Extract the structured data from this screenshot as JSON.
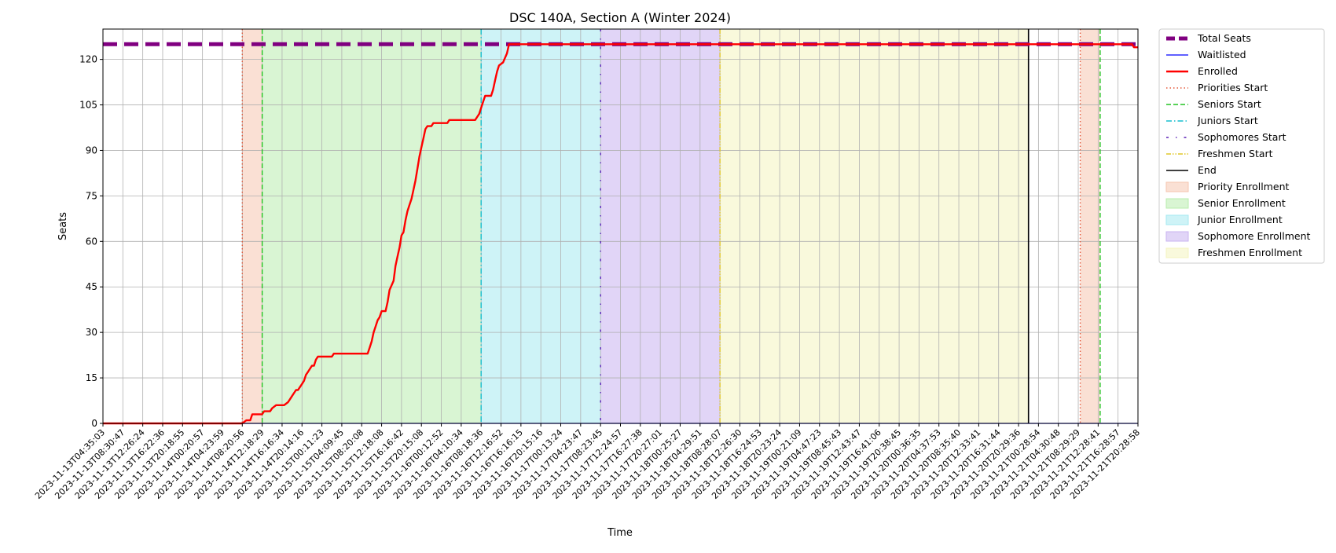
{
  "chart_data": {
    "type": "line",
    "title": "DSC 140A, Section A (Winter 2024)",
    "xlabel": "Time",
    "ylabel": "Seats",
    "ylim": [
      0,
      130
    ],
    "yticks": [
      0,
      15,
      30,
      45,
      60,
      75,
      90,
      105,
      120
    ],
    "grid": true,
    "legend_placement": "outside-right",
    "x_tick_labels": [
      "2023-11-13T04:35:03",
      "2023-11-13T08:30:47",
      "2023-11-13T12:26:24",
      "2023-11-13T16:22:36",
      "2023-11-13T20:18:55",
      "2023-11-14T00:20:57",
      "2023-11-14T04:23:59",
      "2023-11-14T08:20:56",
      "2023-11-14T12:18:29",
      "2023-11-14T16:16:34",
      "2023-11-14T20:14:16",
      "2023-11-15T00:11:23",
      "2023-11-15T04:09:45",
      "2023-11-15T08:20:08",
      "2023-11-15T12:18:08",
      "2023-11-15T16:16:42",
      "2023-11-15T20:15:08",
      "2023-11-16T00:12:52",
      "2023-11-16T04:10:34",
      "2023-11-16T08:18:36",
      "2023-11-16T12:16:52",
      "2023-11-16T16:16:15",
      "2023-11-16T20:15:16",
      "2023-11-17T00:13:24",
      "2023-11-17T04:23:47",
      "2023-11-17T08:23:45",
      "2023-11-17T12:24:57",
      "2023-11-17T16:27:38",
      "2023-11-17T20:27:01",
      "2023-11-18T00:25:27",
      "2023-11-18T04:29:51",
      "2023-11-18T08:28:07",
      "2023-11-18T12:26:30",
      "2023-11-18T16:24:53",
      "2023-11-18T20:23:24",
      "2023-11-19T00:21:09",
      "2023-11-19T04:47:23",
      "2023-11-19T08:45:43",
      "2023-11-19T12:43:47",
      "2023-11-19T16:41:06",
      "2023-11-19T20:38:45",
      "2023-11-20T00:36:35",
      "2023-11-20T04:37:53",
      "2023-11-20T08:35:40",
      "2023-11-20T12:33:41",
      "2023-11-20T16:31:44",
      "2023-11-20T20:29:36",
      "2023-11-21T00:28:54",
      "2023-11-21T04:30:48",
      "2023-11-21T08:29:29",
      "2023-11-21T12:28:41",
      "2023-11-21T16:28:57",
      "2023-11-21T20:28:58"
    ],
    "series": [
      {
        "name": "Total Seats",
        "color": "#800080",
        "style": "dashed-thick",
        "points": [
          [
            0,
            125
          ],
          [
            52,
            125
          ]
        ]
      },
      {
        "name": "Waitlisted",
        "color": "#0000ff",
        "style": "solid",
        "points": [
          [
            0,
            0
          ],
          [
            52,
            0
          ]
        ]
      },
      {
        "name": "Enrolled",
        "color": "#ff0000",
        "style": "solid-thick",
        "points": [
          [
            0,
            0
          ],
          [
            7,
            0
          ],
          [
            7.2,
            1
          ],
          [
            7.4,
            1
          ],
          [
            7.5,
            3
          ],
          [
            8,
            3
          ],
          [
            8.1,
            4
          ],
          [
            8.4,
            4
          ],
          [
            8.5,
            5
          ],
          [
            8.7,
            6
          ],
          [
            9.1,
            6
          ],
          [
            9.3,
            7
          ],
          [
            9.4,
            8
          ],
          [
            9.5,
            9
          ],
          [
            9.6,
            10
          ],
          [
            9.7,
            11
          ],
          [
            9.8,
            11
          ],
          [
            9.9,
            12
          ],
          [
            10,
            13
          ],
          [
            10.1,
            14
          ],
          [
            10.2,
            16
          ],
          [
            10.3,
            17
          ],
          [
            10.4,
            18
          ],
          [
            10.5,
            19
          ],
          [
            10.6,
            19
          ],
          [
            10.7,
            21
          ],
          [
            10.8,
            22
          ],
          [
            11.5,
            22
          ],
          [
            11.6,
            23
          ],
          [
            13.3,
            23
          ],
          [
            13.4,
            25
          ],
          [
            13.5,
            27
          ],
          [
            13.6,
            30
          ],
          [
            13.7,
            32
          ],
          [
            13.8,
            34
          ],
          [
            13.9,
            35
          ],
          [
            14,
            37
          ],
          [
            14.2,
            37
          ],
          [
            14.3,
            40
          ],
          [
            14.4,
            44
          ],
          [
            14.6,
            47
          ],
          [
            14.7,
            52
          ],
          [
            14.8,
            55
          ],
          [
            14.9,
            58
          ],
          [
            15,
            62
          ],
          [
            15.1,
            63
          ],
          [
            15.2,
            67
          ],
          [
            15.3,
            70
          ],
          [
            15.4,
            72
          ],
          [
            15.5,
            74
          ],
          [
            15.6,
            77
          ],
          [
            15.7,
            80
          ],
          [
            15.8,
            84
          ],
          [
            15.9,
            88
          ],
          [
            16,
            91
          ],
          [
            16.1,
            94
          ],
          [
            16.2,
            97
          ],
          [
            16.3,
            98
          ],
          [
            16.5,
            98
          ],
          [
            16.6,
            99
          ],
          [
            17.3,
            99
          ],
          [
            17.4,
            100
          ],
          [
            18.7,
            100
          ],
          [
            18.8,
            101
          ],
          [
            18.9,
            102
          ],
          [
            19,
            104
          ],
          [
            19.1,
            106
          ],
          [
            19.2,
            108
          ],
          [
            19.5,
            108
          ],
          [
            19.6,
            110
          ],
          [
            19.7,
            113
          ],
          [
            19.8,
            116
          ],
          [
            19.9,
            118
          ],
          [
            20.1,
            119
          ],
          [
            20.3,
            122
          ],
          [
            20.4,
            125
          ],
          [
            51.7,
            125
          ],
          [
            51.8,
            124
          ],
          [
            52,
            124
          ]
        ]
      }
    ],
    "vertical_lines": [
      {
        "name": "Priorities Start",
        "x": 7.0,
        "color": "#e55a3c",
        "style": "dotted"
      },
      {
        "name": "Seniors Start",
        "x": 8.0,
        "color": "#22c322",
        "style": "dashed"
      },
      {
        "name": "Juniors Start",
        "x": 19.0,
        "color": "#17becf",
        "style": "dashdot"
      },
      {
        "name": "Sophomores Start",
        "x": 25.0,
        "color": "#5b21b6",
        "style": "loosedashdot"
      },
      {
        "name": "Freshmen Start",
        "x": 31.0,
        "color": "#e1c72a",
        "style": "dashdotdot"
      },
      {
        "name": "End",
        "x": 46.5,
        "color": "#000000",
        "style": "solid"
      },
      {
        "name": "Priorities Start",
        "x": 49.1,
        "color": "#e55a3c",
        "style": "dotted",
        "legend": false
      },
      {
        "name": "Seniors Start",
        "x": 50.1,
        "color": "#22c322",
        "style": "dashed",
        "legend": false
      }
    ],
    "shaded_periods": [
      {
        "name": "Priority Enrollment",
        "from": 7.0,
        "to": 8.0,
        "color": "#f5c6b0"
      },
      {
        "name": "Senior Enrollment",
        "from": 8.0,
        "to": 19.0,
        "color": "#b9edae"
      },
      {
        "name": "Junior Enrollment",
        "from": 19.0,
        "to": 25.0,
        "color": "#a6eaf0"
      },
      {
        "name": "Sophomore Enrollment",
        "from": 25.0,
        "to": 31.0,
        "color": "#c9b3f0"
      },
      {
        "name": "Freshmen Enrollment",
        "from": 31.0,
        "to": 46.5,
        "color": "#f4f4bf"
      },
      {
        "name": "Priority Enrollment",
        "from": 49.1,
        "to": 50.1,
        "color": "#f5c6b0",
        "legend": false
      }
    ],
    "legend": [
      "Total Seats",
      "Waitlisted",
      "Enrolled",
      "Priorities Start",
      "Seniors Start",
      "Juniors Start",
      "Sophomores Start",
      "Freshmen Start",
      "End",
      "Priority Enrollment",
      "Senior Enrollment",
      "Junior Enrollment",
      "Sophomore Enrollment",
      "Freshmen Enrollment"
    ]
  }
}
